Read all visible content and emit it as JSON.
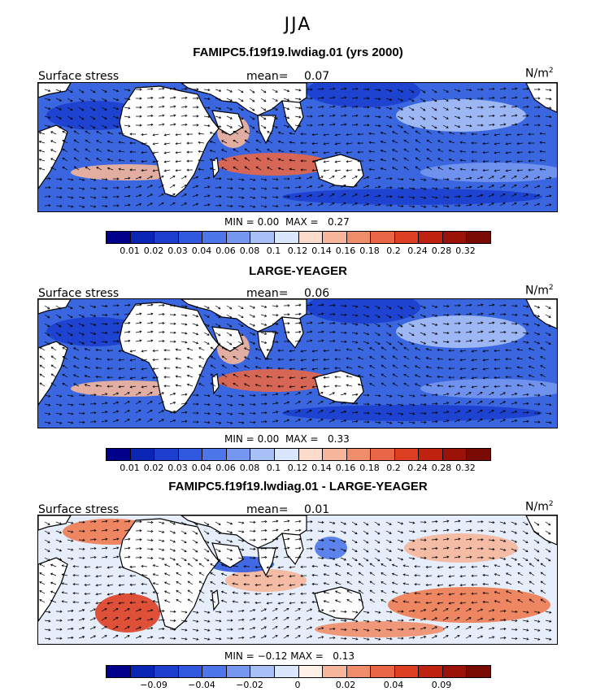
{
  "season": "JJA",
  "panels": [
    {
      "title": "FAMIPC5.f19f19.lwdiag.01 (yrs 2000)",
      "variable": "Surface stress",
      "mean_label": "mean=",
      "mean_value": "0.07",
      "units_base": "N/m",
      "units_exp": "2",
      "min_label": "MIN =",
      "min_value": "0.00",
      "max_label": "MAX =",
      "max_value": "0.27",
      "ticks": [
        "0.01",
        "0.02",
        "0.03",
        "0.04",
        "0.06",
        "0.08",
        "0.1",
        "0.12",
        "0.14",
        "0.16",
        "0.18",
        "0.2",
        "0.24",
        "0.28",
        "0.32"
      ]
    },
    {
      "title": "LARGE-YEAGER",
      "variable": "Surface stress",
      "mean_label": "mean=",
      "mean_value": "0.06",
      "units_base": "N/m",
      "units_exp": "2",
      "min_label": "MIN =",
      "min_value": "0.00",
      "max_label": "MAX =",
      "max_value": "0.33",
      "ticks": [
        "0.01",
        "0.02",
        "0.03",
        "0.04",
        "0.06",
        "0.08",
        "0.1",
        "0.12",
        "0.14",
        "0.16",
        "0.18",
        "0.2",
        "0.24",
        "0.28",
        "0.32"
      ]
    },
    {
      "title": "FAMIPC5.f19f19.lwdiag.01 - LARGE-YEAGER",
      "variable": "Surface stress",
      "mean_label": "mean=",
      "mean_value": "0.01",
      "units_base": "N/m",
      "units_exp": "2",
      "min_label": "MIN =",
      "min_value": "−0.12",
      "max_label": "MAX =",
      "max_value": "0.13",
      "ticks": [
        "−0.09",
        "−0.04",
        "−0.02",
        "0",
        "0.02",
        "0.04",
        "0.09"
      ]
    }
  ],
  "colorbar_main": [
    "#00008b",
    "#0a24b4",
    "#1c3fcf",
    "#2f5ae0",
    "#4c76ea",
    "#7597f0",
    "#a7c0f6",
    "#d9e6fb",
    "#fbdccc",
    "#f6b69b",
    "#ef8d6a",
    "#e86646",
    "#dd3f22",
    "#c02210",
    "#9a1208",
    "#7a0a04"
  ],
  "colorbar_diff": [
    "#00008b",
    "#0a24b4",
    "#1c3fcf",
    "#2f5ae0",
    "#4c76ea",
    "#7597f0",
    "#a7c0f6",
    "#d9e6fb",
    "#fdf1e6",
    "#f6b69b",
    "#ef8d6a",
    "#e86646",
    "#dd3f22",
    "#c02210",
    "#9a1208",
    "#7a0a04"
  ],
  "colors": {
    "land": "#ffffff",
    "ocean_low": "#3a67e0",
    "ocean_high": "#ee7a50",
    "arrow": "#000000"
  }
}
